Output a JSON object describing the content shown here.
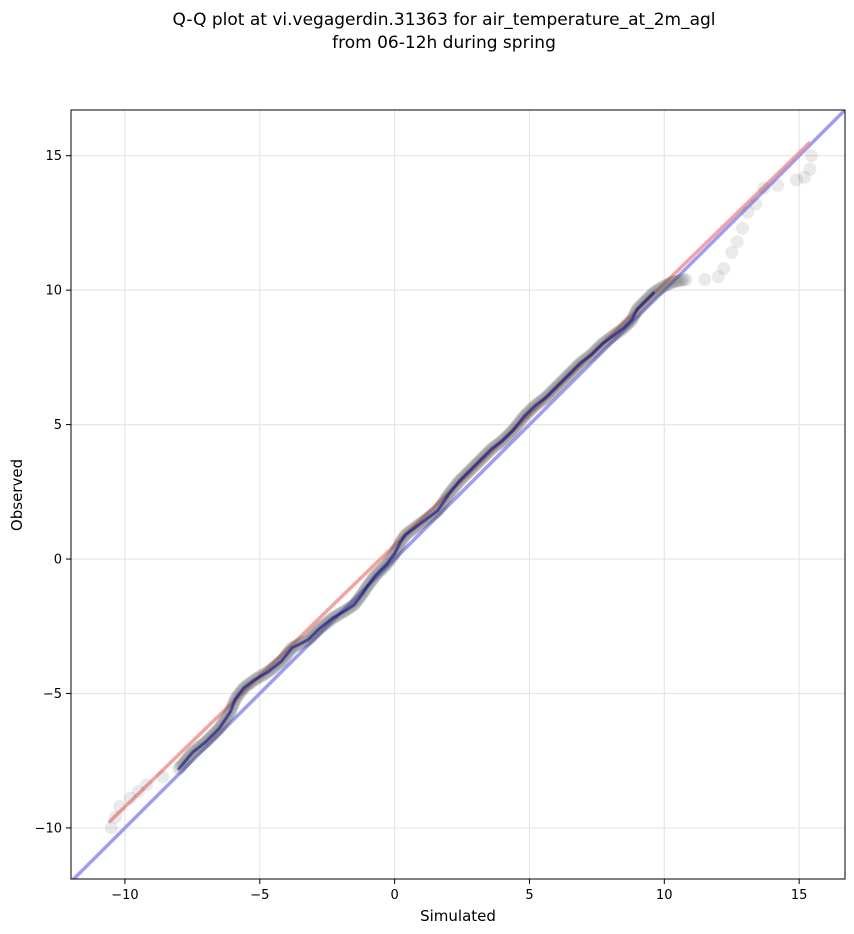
{
  "chart_data": {
    "type": "scatter",
    "title_lines": [
      "Q-Q plot at vi.vegagerdin.31363 for air_temperature_at_2m_agl",
      "from 06-12h during spring"
    ],
    "xlabel": "Simulated",
    "ylabel": "Observed",
    "xlim": [
      -12,
      16.7
    ],
    "ylim": [
      -11.9,
      16.7
    ],
    "xticks": [
      -10,
      -5,
      0,
      5,
      10,
      15
    ],
    "yticks": [
      -10,
      -5,
      0,
      5,
      10,
      15
    ],
    "xtick_labels": [
      "−10",
      "−5",
      "0",
      "5",
      "10",
      "15"
    ],
    "ytick_labels": [
      "−10",
      "−5",
      "0",
      "5",
      "10",
      "15"
    ],
    "grid": true,
    "colors": {
      "points": "#555555",
      "inner_line": "#00008b",
      "reference_line": "#8c8cf0",
      "fit_line": "#f08c8c"
    },
    "reference_line": {
      "label": "y = x",
      "points": [
        [
          -12,
          -12
        ],
        [
          16.7,
          16.7
        ]
      ]
    },
    "fit_line": {
      "points": [
        [
          -10.6,
          -9.8
        ],
        [
          15.4,
          15.5
        ]
      ]
    },
    "quantile_path": [
      [
        -10.5,
        -10.0
      ],
      [
        -10.2,
        -9.2
      ],
      [
        -9.8,
        -8.9
      ],
      [
        -9.2,
        -8.4
      ],
      [
        -8.6,
        -8.1
      ],
      [
        -8.0,
        -7.8
      ],
      [
        -7.5,
        -7.2
      ],
      [
        -7.0,
        -6.8
      ],
      [
        -6.5,
        -6.3
      ],
      [
        -6.1,
        -5.7
      ],
      [
        -5.9,
        -5.2
      ],
      [
        -5.6,
        -4.8
      ],
      [
        -5.2,
        -4.5
      ],
      [
        -4.7,
        -4.2
      ],
      [
        -4.2,
        -3.8
      ],
      [
        -3.8,
        -3.3
      ],
      [
        -3.2,
        -3.0
      ],
      [
        -2.8,
        -2.6
      ],
      [
        -2.3,
        -2.2
      ],
      [
        -1.8,
        -1.9
      ],
      [
        -1.5,
        -1.7
      ],
      [
        -1.2,
        -1.3
      ],
      [
        -1.0,
        -1.0
      ],
      [
        -0.7,
        -0.6
      ],
      [
        -0.3,
        -0.2
      ],
      [
        0.0,
        0.2
      ],
      [
        0.2,
        0.6
      ],
      [
        0.4,
        0.9
      ],
      [
        0.8,
        1.2
      ],
      [
        1.2,
        1.5
      ],
      [
        1.6,
        1.8
      ],
      [
        2.0,
        2.4
      ],
      [
        2.4,
        2.9
      ],
      [
        2.8,
        3.3
      ],
      [
        3.2,
        3.7
      ],
      [
        3.6,
        4.1
      ],
      [
        4.0,
        4.4
      ],
      [
        4.4,
        4.8
      ],
      [
        4.8,
        5.3
      ],
      [
        5.2,
        5.7
      ],
      [
        5.6,
        6.0
      ],
      [
        6.0,
        6.4
      ],
      [
        6.4,
        6.8
      ],
      [
        6.9,
        7.3
      ],
      [
        7.3,
        7.6
      ],
      [
        7.7,
        8.0
      ],
      [
        8.1,
        8.3
      ],
      [
        8.5,
        8.6
      ],
      [
        8.8,
        8.9
      ],
      [
        9.0,
        9.3
      ],
      [
        9.3,
        9.6
      ],
      [
        9.6,
        9.9
      ],
      [
        9.9,
        10.1
      ],
      [
        10.3,
        10.3
      ],
      [
        10.8,
        10.4
      ],
      [
        11.5,
        10.4
      ],
      [
        12.0,
        10.5
      ],
      [
        12.2,
        10.8
      ],
      [
        12.5,
        11.4
      ],
      [
        12.7,
        11.8
      ],
      [
        12.9,
        12.3
      ],
      [
        13.1,
        12.9
      ],
      [
        13.4,
        13.2
      ],
      [
        13.7,
        13.8
      ],
      [
        14.2,
        13.9
      ],
      [
        14.9,
        14.1
      ],
      [
        15.2,
        14.2
      ],
      [
        15.4,
        14.5
      ],
      [
        15.45,
        15.0
      ]
    ]
  }
}
